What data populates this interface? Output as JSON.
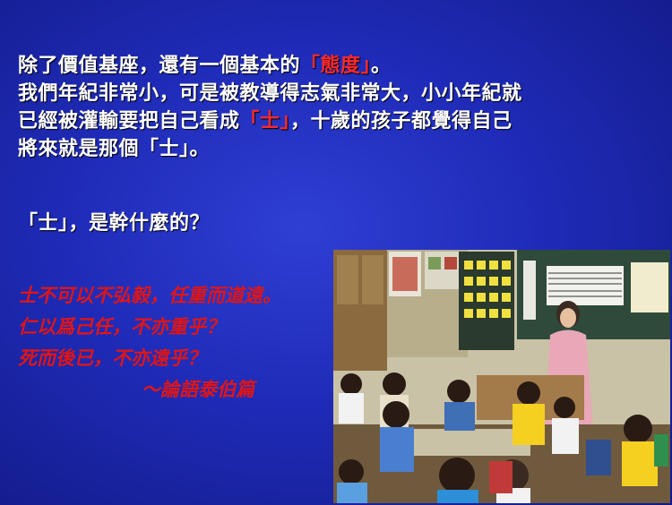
{
  "paragraph1": {
    "line1_a": "除了價值基座，還有一個基本的",
    "line1_red": "「態度」",
    "line1_b": "。",
    "line2": "我們年紀非常小，可是被教導得志氣非常大，小小年紀就",
    "line3_a": "已經被灌輸要把自己看成",
    "line3_red": "「士」",
    "line3_b": "，十歲的孩子都覺得自己",
    "line4": "將來就是那個「士」。"
  },
  "question": "「士」，是幹什麼的？",
  "quote": {
    "line1": "士不可以不弘毅，任重而道遠。",
    "line2": "仁以爲己任，不亦重乎？",
    "line3": "死而後已，不亦遠乎？",
    "source": "～論語泰伯篇"
  },
  "photo": {
    "icon": "classroom-photo"
  },
  "colors": {
    "background": "#1f2bb8",
    "text": "#ffffff",
    "accent_red": "#ff2a2a",
    "quote_red": "#e01515"
  }
}
